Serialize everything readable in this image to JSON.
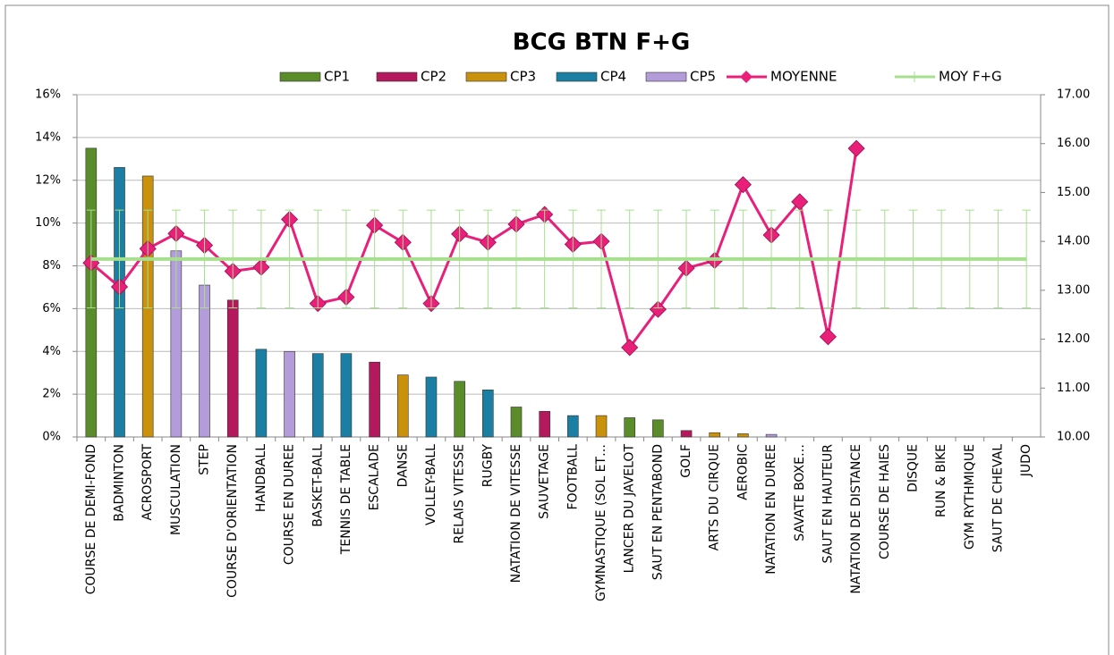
{
  "chart_data": {
    "type": "bar",
    "title": "BCG BTN F+G",
    "categories": [
      "COURSE DE DEMI-FOND",
      "BADMINTON",
      "ACROSPORT",
      "MUSCULATION",
      "STEP",
      "COURSE D'ORIENTATION",
      "HANDBALL",
      "COURSE EN DUREE",
      "BASKET-BALL",
      "TENNIS DE TABLE",
      "ESCALADE",
      "DANSE",
      "VOLLEY-BALL",
      "RELAIS VITESSE",
      "RUGBY",
      "NATATION DE VITESSE",
      "SAUVETAGE",
      "FOOTBALL",
      "GYMNASTIQUE (SOL ET…",
      "LANCER DU JAVELOT",
      "SAUT EN PENTABOND",
      "GOLF",
      "ARTS DU CIRQUE",
      "AEROBIC",
      "NATATION EN DUREE",
      "SAVATE BOXE…",
      "SAUT EN HAUTEUR",
      "NATATION DE DISTANCE",
      "COURSE DE HAIES",
      "DISQUE",
      "RUN & BIKE",
      "GYM RYTHMIQUE",
      "SAUT DE CHEVAL",
      "JUDO"
    ],
    "series": [
      {
        "name": "CP1",
        "color": "#5b8c2a",
        "values": [
          13.5,
          null,
          null,
          null,
          null,
          null,
          null,
          null,
          null,
          null,
          null,
          null,
          null,
          2.6,
          null,
          1.4,
          null,
          null,
          null,
          0.9,
          0.8,
          null,
          null,
          null,
          null,
          null,
          null,
          null,
          null,
          null,
          null,
          null,
          null,
          null
        ]
      },
      {
        "name": "CP2",
        "color": "#b3195c",
        "values": [
          null,
          null,
          null,
          null,
          null,
          6.4,
          null,
          null,
          null,
          null,
          3.5,
          null,
          null,
          null,
          null,
          null,
          1.2,
          null,
          null,
          null,
          null,
          0.3,
          null,
          null,
          null,
          null,
          null,
          null,
          null,
          null,
          null,
          null,
          null,
          null
        ]
      },
      {
        "name": "CP3",
        "color": "#c9910c",
        "values": [
          null,
          null,
          12.2,
          null,
          null,
          null,
          null,
          null,
          null,
          null,
          null,
          2.9,
          null,
          null,
          null,
          null,
          null,
          null,
          1.0,
          null,
          null,
          null,
          0.2,
          0.15,
          null,
          null,
          null,
          null,
          null,
          null,
          null,
          null,
          null,
          null
        ]
      },
      {
        "name": "CP4",
        "color": "#1a7fa2",
        "values": [
          null,
          12.6,
          null,
          null,
          null,
          null,
          4.1,
          null,
          3.9,
          3.9,
          null,
          null,
          2.8,
          null,
          2.2,
          null,
          null,
          1.0,
          null,
          null,
          null,
          null,
          null,
          null,
          null,
          null,
          null,
          null,
          null,
          null,
          null,
          null,
          null,
          null
        ]
      },
      {
        "name": "CP5",
        "color": "#b49bd9",
        "values": [
          null,
          null,
          null,
          8.7,
          7.1,
          null,
          null,
          4.0,
          null,
          null,
          null,
          null,
          null,
          null,
          null,
          null,
          null,
          null,
          null,
          null,
          null,
          null,
          null,
          null,
          0.12,
          null,
          null,
          null,
          null,
          null,
          null,
          null,
          null,
          null
        ]
      },
      {
        "name": "MOYENNE",
        "type": "line",
        "axis": "y2",
        "color": "#e8207a",
        "values": [
          13.56,
          13.07,
          13.85,
          14.16,
          13.92,
          13.39,
          13.47,
          14.45,
          12.73,
          12.86,
          14.33,
          13.98,
          12.73,
          14.15,
          13.98,
          14.35,
          14.55,
          13.94,
          14.0,
          11.83,
          12.61,
          13.45,
          13.61,
          15.16,
          14.13,
          14.81,
          12.05,
          15.9,
          null,
          null,
          null,
          null,
          null,
          null
        ]
      },
      {
        "name": "MOY F+G",
        "type": "line",
        "axis": "y2",
        "color": "#a6df8e",
        "error": 1.0,
        "values": [
          13.64,
          13.64,
          13.64,
          13.64,
          13.64,
          13.64,
          13.64,
          13.64,
          13.64,
          13.64,
          13.64,
          13.64,
          13.64,
          13.64,
          13.64,
          13.64,
          13.64,
          13.64,
          13.64,
          13.64,
          13.64,
          13.64,
          13.64,
          13.64,
          13.64,
          13.64,
          13.64,
          13.64,
          13.64,
          13.64,
          13.64,
          13.64,
          13.64,
          13.64
        ]
      }
    ],
    "ylim": [
      0,
      16
    ],
    "yticks": [
      {
        "value": 0,
        "label": "0%"
      },
      {
        "value": 2,
        "label": "2%"
      },
      {
        "value": 4,
        "label": "4%"
      },
      {
        "value": 6,
        "label": "6%"
      },
      {
        "value": 8,
        "label": "8%"
      },
      {
        "value": 10,
        "label": "10%"
      },
      {
        "value": 12,
        "label": "12%"
      },
      {
        "value": 14,
        "label": "14%"
      },
      {
        "value": 16,
        "label": "16%"
      }
    ],
    "y2lim": [
      10,
      17
    ],
    "y2ticks": [
      {
        "value": 10,
        "label": "10.00"
      },
      {
        "value": 11,
        "label": "11.00"
      },
      {
        "value": 12,
        "label": "12.00"
      },
      {
        "value": 13,
        "label": "13.00"
      },
      {
        "value": 14,
        "label": "14.00"
      },
      {
        "value": 15,
        "label": "15.00"
      },
      {
        "value": 16,
        "label": "16.00"
      },
      {
        "value": 17,
        "label": "17.00"
      }
    ],
    "grid": true,
    "legend": "top"
  }
}
